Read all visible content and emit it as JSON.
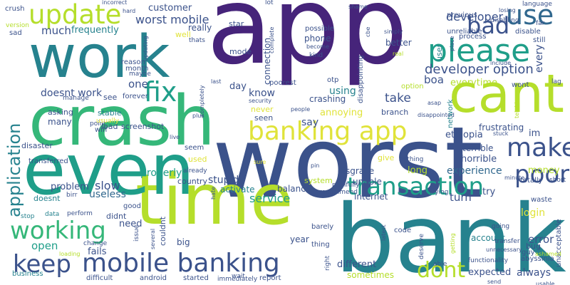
{
  "palette": {
    "purple": "#46247a",
    "indigo": "#3b528b",
    "blue": "#31688e",
    "teal": "#26828e",
    "cyan": "#1f9e89",
    "green": "#35b779",
    "lime": "#6ece58",
    "yellowgreen": "#b5de2b",
    "yellow": "#e0e33a"
  },
  "words": [
    {
      "text": "app",
      "color": "purple"
    },
    {
      "text": "worst",
      "color": "indigo"
    },
    {
      "text": "bank",
      "color": "teal"
    },
    {
      "text": "time",
      "color": "yellowgreen"
    },
    {
      "text": "crash",
      "color": "green"
    },
    {
      "text": "even",
      "color": "cyan"
    },
    {
      "text": "work",
      "color": "teal"
    },
    {
      "text": "cant",
      "color": "yellowgreen"
    },
    {
      "text": "please",
      "color": "cyan"
    },
    {
      "text": "update",
      "color": "yellowgreen"
    },
    {
      "text": "fix",
      "color": "cyan"
    },
    {
      "text": "use",
      "color": "blue"
    },
    {
      "text": "bad",
      "color": "indigo"
    },
    {
      "text": "banking app",
      "color": "yellow"
    },
    {
      "text": "make",
      "color": "indigo"
    },
    {
      "text": "poor",
      "color": "indigo"
    },
    {
      "text": "transaction",
      "color": "cyan"
    },
    {
      "text": "mobile banking",
      "color": "indigo"
    },
    {
      "text": "keep",
      "color": "indigo"
    },
    {
      "text": "working",
      "color": "green"
    },
    {
      "text": "application",
      "color": "teal"
    },
    {
      "text": "dont",
      "color": "yellowgreen"
    },
    {
      "text": "developer option",
      "color": "indigo"
    },
    {
      "text": "developer",
      "color": "indigo"
    },
    {
      "text": "worst mobile",
      "color": "indigo"
    },
    {
      "text": "customer",
      "color": "indigo"
    },
    {
      "text": "much",
      "color": "indigo"
    },
    {
      "text": "frequently",
      "color": "teal"
    },
    {
      "text": "really",
      "color": "indigo"
    },
    {
      "text": "doesnt work",
      "color": "indigo"
    },
    {
      "text": "one",
      "color": "indigo"
    },
    {
      "text": "know",
      "color": "indigo"
    },
    {
      "text": "using",
      "color": "teal"
    },
    {
      "text": "take",
      "color": "indigo"
    },
    {
      "text": "boa",
      "color": "indigo"
    },
    {
      "text": "everytime",
      "color": "yellowgreen"
    },
    {
      "text": "crashing",
      "color": "indigo"
    },
    {
      "text": "annoying",
      "color": "yellow"
    },
    {
      "text": "frustrating",
      "color": "indigo"
    },
    {
      "text": "ethiopia",
      "color": "indigo"
    },
    {
      "text": "say",
      "color": "indigo"
    },
    {
      "text": "horrible",
      "color": "indigo"
    },
    {
      "text": "terrible",
      "color": "indigo"
    },
    {
      "text": "experience",
      "color": "blue"
    },
    {
      "text": "money",
      "color": "yellowgreen"
    },
    {
      "text": "long",
      "color": "yellowgreen"
    },
    {
      "text": "properly",
      "color": "cyan"
    },
    {
      "text": "service",
      "color": "cyan"
    },
    {
      "text": "slow",
      "color": "indigo"
    },
    {
      "text": "useless",
      "color": "blue"
    },
    {
      "text": "problem",
      "color": "indigo"
    },
    {
      "text": "open",
      "color": "cyan"
    },
    {
      "text": "need",
      "color": "indigo"
    },
    {
      "text": "fails",
      "color": "indigo"
    },
    {
      "text": "login",
      "color": "yellow"
    },
    {
      "text": "error",
      "color": "indigo"
    },
    {
      "text": "always",
      "color": "indigo"
    },
    {
      "text": "expected",
      "color": "indigo"
    },
    {
      "text": "try",
      "color": "indigo"
    },
    {
      "text": "turn",
      "color": "indigo"
    },
    {
      "text": "account",
      "color": "teal"
    },
    {
      "text": "sometimes",
      "color": "yellowgreen"
    },
    {
      "text": "different",
      "color": "indigo"
    },
    {
      "text": "internet",
      "color": "indigo"
    },
    {
      "text": "unable",
      "color": "indigo"
    },
    {
      "text": "disgrace",
      "color": "indigo"
    },
    {
      "text": "stupid",
      "color": "indigo"
    },
    {
      "text": "activate",
      "color": "teal"
    },
    {
      "text": "balance",
      "color": "indigo"
    },
    {
      "text": "system",
      "color": "yellowgreen"
    },
    {
      "text": "connection",
      "color": "indigo"
    },
    {
      "text": "phone",
      "color": "indigo"
    },
    {
      "text": "mode",
      "color": "indigo"
    },
    {
      "text": "day",
      "color": "indigo"
    },
    {
      "text": "poorest",
      "color": "indigo"
    },
    {
      "text": "never",
      "color": "yellow"
    },
    {
      "text": "seen",
      "color": "indigo"
    },
    {
      "text": "screenshot",
      "color": "indigo"
    },
    {
      "text": "load",
      "color": "indigo"
    },
    {
      "text": "many",
      "color": "indigo"
    },
    {
      "text": "disaster",
      "color": "indigo"
    },
    {
      "text": "country",
      "color": "indigo"
    },
    {
      "text": "used",
      "color": "yellow"
    },
    {
      "text": "seem",
      "color": "indigo"
    },
    {
      "text": "doesnt",
      "color": "teal"
    },
    {
      "text": "didnt",
      "color": "indigo"
    },
    {
      "text": "android",
      "color": "indigo"
    },
    {
      "text": "started",
      "color": "indigo"
    },
    {
      "text": "difficult",
      "color": "indigo"
    },
    {
      "text": "business",
      "color": "teal"
    },
    {
      "text": "reason",
      "color": "indigo"
    },
    {
      "text": "month",
      "color": "indigo"
    },
    {
      "text": "transferred",
      "color": "indigo"
    },
    {
      "text": "asking",
      "color": "indigo"
    },
    {
      "text": "crush",
      "color": "indigo"
    },
    {
      "text": "sad",
      "color": "indigo"
    },
    {
      "text": "version",
      "color": "yellowgreen"
    },
    {
      "text": "abyssinia",
      "color": "indigo"
    },
    {
      "text": "unacceptable",
      "color": "indigo"
    },
    {
      "text": "bug",
      "color": "indigo"
    },
    {
      "text": "guy",
      "color": "indigo"
    },
    {
      "text": "waste",
      "color": "indigo"
    },
    {
      "text": "totally",
      "color": "indigo"
    },
    {
      "text": "im",
      "color": "indigo"
    },
    {
      "text": "every",
      "color": "indigo"
    },
    {
      "text": "option",
      "color": "yellowgreen"
    },
    {
      "text": "disable",
      "color": "indigo"
    },
    {
      "text": "still",
      "color": "indigo"
    },
    {
      "text": "process",
      "color": "indigo"
    },
    {
      "text": "unreliable",
      "color": "indigo"
    },
    {
      "text": "previous",
      "color": "indigo"
    },
    {
      "text": "language",
      "color": "indigo"
    },
    {
      "text": "far",
      "color": "indigo"
    },
    {
      "text": "lag",
      "color": "indigo"
    },
    {
      "text": "wont",
      "color": "indigo"
    },
    {
      "text": "possible",
      "color": "indigo"
    },
    {
      "text": "better",
      "color": "indigo"
    },
    {
      "text": "otp",
      "color": "indigo"
    },
    {
      "text": "branch",
      "color": "indigo"
    },
    {
      "text": "give",
      "color": "yellow"
    },
    {
      "text": "nothing",
      "color": "indigo"
    },
    {
      "text": "recommend",
      "color": "indigo"
    },
    {
      "text": "painfully",
      "color": "indigo"
    },
    {
      "text": "trying",
      "color": "indigo"
    },
    {
      "text": "code",
      "color": "indigo"
    },
    {
      "text": "thing",
      "color": "indigo"
    },
    {
      "text": "barely",
      "color": "indigo"
    },
    {
      "text": "year",
      "color": "indigo"
    },
    {
      "text": "report",
      "color": "indigo"
    },
    {
      "text": "wait",
      "color": "indigo"
    },
    {
      "text": "immediately",
      "color": "indigo"
    },
    {
      "text": "big",
      "color": "indigo"
    },
    {
      "text": "issue",
      "color": "indigo"
    },
    {
      "text": "good",
      "color": "indigo"
    },
    {
      "text": "perform",
      "color": "indigo"
    },
    {
      "text": "change",
      "color": "indigo"
    },
    {
      "text": "data",
      "color": "teal"
    },
    {
      "text": "stop",
      "color": "teal"
    },
    {
      "text": "birr",
      "color": "indigo"
    },
    {
      "text": "wifi",
      "color": "indigo"
    },
    {
      "text": "point",
      "color": "indigo"
    },
    {
      "text": "usually",
      "color": "yellow"
    },
    {
      "text": "stable",
      "color": "teal"
    },
    {
      "text": "see",
      "color": "indigo"
    },
    {
      "text": "forever",
      "color": "indigo"
    },
    {
      "text": "manage",
      "color": "indigo"
    },
    {
      "text": "maybe",
      "color": "indigo"
    },
    {
      "text": "updating",
      "color": "indigo"
    },
    {
      "text": "well",
      "color": "yellow"
    },
    {
      "text": "thats",
      "color": "indigo"
    },
    {
      "text": "star",
      "color": "indigo"
    },
    {
      "text": "lot",
      "color": "indigo"
    },
    {
      "text": "hard",
      "color": "indigo"
    },
    {
      "text": "incorrect",
      "color": "indigo"
    },
    {
      "text": "shame",
      "color": "indigo"
    },
    {
      "text": "complete",
      "color": "indigo"
    },
    {
      "text": "become",
      "color": "indigo"
    },
    {
      "text": "kind",
      "color": "indigo"
    },
    {
      "text": "cbe",
      "color": "indigo"
    },
    {
      "text": "simply",
      "color": "indigo"
    },
    {
      "text": "real",
      "color": "yellowgreen"
    },
    {
      "text": "disappointing",
      "color": "indigo"
    },
    {
      "text": "disappointed",
      "color": "indigo"
    },
    {
      "text": "people",
      "color": "indigo"
    },
    {
      "text": "security",
      "color": "indigo"
    },
    {
      "text": "last",
      "color": "indigo"
    },
    {
      "text": "completely",
      "color": "indigo"
    },
    {
      "text": "plus",
      "color": "indigo"
    },
    {
      "text": "live",
      "color": "indigo"
    },
    {
      "text": "sure",
      "color": "yellow"
    },
    {
      "text": "pin",
      "color": "indigo"
    },
    {
      "text": "already",
      "color": "indigo"
    },
    {
      "text": "hate",
      "color": "indigo"
    },
    {
      "text": "couldnt",
      "color": "indigo"
    },
    {
      "text": "several",
      "color": "indigo"
    },
    {
      "text": "loading",
      "color": "yellowgreen"
    },
    {
      "text": "right",
      "color": "indigo"
    },
    {
      "text": "latest",
      "color": "indigo"
    },
    {
      "text": "deserve",
      "color": "indigo"
    },
    {
      "text": "able",
      "color": "indigo"
    },
    {
      "text": "functionality",
      "color": "indigo"
    },
    {
      "text": "unnecessary",
      "color": "indigo"
    },
    {
      "text": "getting",
      "color": "yellowgreen"
    },
    {
      "text": "send",
      "color": "indigo"
    },
    {
      "text": "usable",
      "color": "indigo"
    },
    {
      "text": "ashamed",
      "color": "yellowgreen"
    },
    {
      "text": "transfer",
      "color": "indigo"
    },
    {
      "text": "going",
      "color": "indigo"
    },
    {
      "text": "minute",
      "color": "indigo"
    },
    {
      "text": "short",
      "color": "indigo"
    },
    {
      "text": "stuck",
      "color": "indigo"
    },
    {
      "text": "telebirr",
      "color": "yellowgreen"
    },
    {
      "text": "asap",
      "color": "indigo"
    },
    {
      "text": "network",
      "color": "teal"
    },
    {
      "text": "user",
      "color": "teal"
    },
    {
      "text": "place",
      "color": "indigo"
    },
    {
      "text": "include",
      "color": "indigo"
    },
    {
      "text": "disabling",
      "color": "indigo"
    },
    {
      "text": "losing",
      "color": "indigo"
    }
  ]
}
